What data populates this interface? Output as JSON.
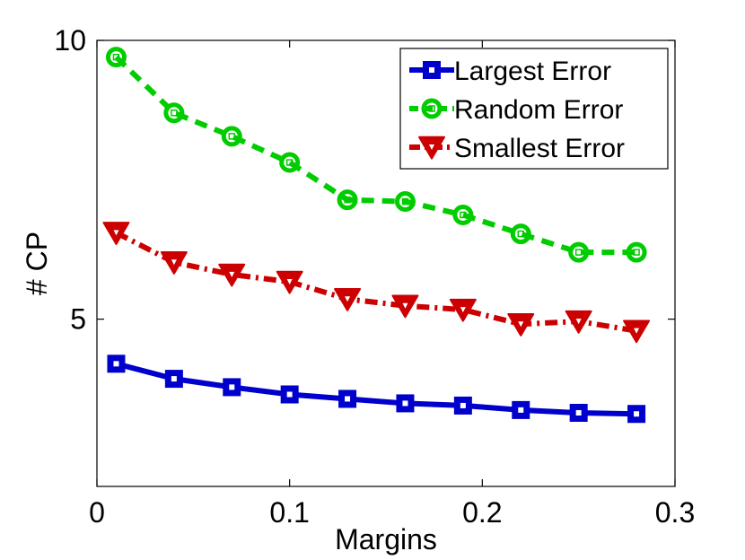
{
  "chart_data": {
    "type": "line",
    "title": "",
    "xlabel": "Margins",
    "ylabel": "# CP",
    "xlim": [
      0,
      0.3
    ],
    "ylim": [
      2,
      10
    ],
    "xticks": [
      0,
      0.1,
      0.2,
      0.3
    ],
    "xtick_labels": [
      "0",
      "0.1",
      "0.2",
      "0.3"
    ],
    "yticks": [
      5,
      10
    ],
    "ytick_labels": [
      "5",
      "10"
    ],
    "x": [
      0.01,
      0.04,
      0.07,
      0.1,
      0.13,
      0.16,
      0.19,
      0.22,
      0.25,
      0.28
    ],
    "legend_position": "top-right",
    "series": [
      {
        "name": "Largest Error",
        "color": "#0000cc",
        "line_style": "solid",
        "marker": "square",
        "values": [
          4.2,
          3.93,
          3.78,
          3.65,
          3.57,
          3.49,
          3.45,
          3.37,
          3.32,
          3.3
        ]
      },
      {
        "name": "Random Error",
        "color": "#00cc00",
        "line_style": "dashed",
        "marker": "circle",
        "values": [
          9.7,
          8.7,
          8.28,
          7.81,
          7.14,
          7.11,
          6.87,
          6.53,
          6.2,
          6.2
        ]
      },
      {
        "name": "Smallest Error",
        "color": "#cc0000",
        "line_style": "dashdot",
        "marker": "triangle-down",
        "values": [
          6.55,
          6.02,
          5.8,
          5.67,
          5.36,
          5.24,
          5.17,
          4.91,
          4.96,
          4.79
        ]
      }
    ]
  }
}
